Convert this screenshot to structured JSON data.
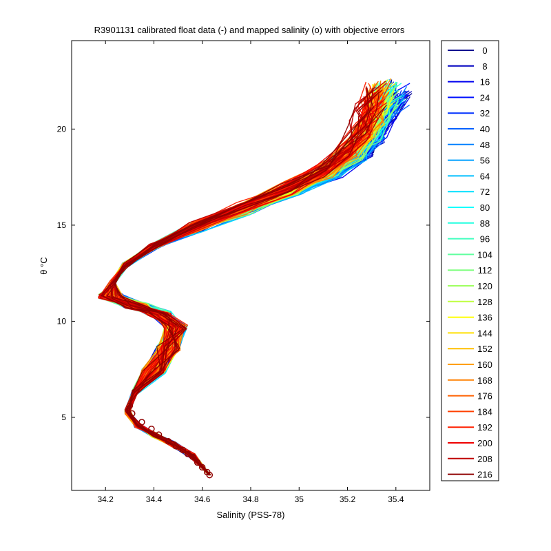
{
  "chart_data": {
    "type": "line",
    "title": "R3901131 calibrated float data (-) and mapped salinity (o) with objective errors",
    "xlabel": "Salinity (PSS-78)",
    "ylabel": "θ °C",
    "xlim": [
      34.06,
      35.54
    ],
    "ylim": [
      1.2,
      24.6
    ],
    "x_ticks": [
      34.2,
      34.4,
      34.6,
      34.8,
      35,
      35.2,
      35.4
    ],
    "x_tick_labels": [
      "34.2",
      "34.4",
      "34.6",
      "34.8",
      "35",
      "35.2",
      "35.4"
    ],
    "y_ticks": [
      5,
      10,
      15,
      20
    ],
    "y_tick_labels": [
      "5",
      "10",
      "15",
      "20"
    ],
    "grid": false,
    "legend_position": "outside-right",
    "colormap": "jet",
    "series_names": [
      "0",
      "8",
      "16",
      "24",
      "32",
      "40",
      "48",
      "56",
      "64",
      "72",
      "80",
      "88",
      "96",
      "104",
      "112",
      "120",
      "128",
      "136",
      "144",
      "152",
      "160",
      "168",
      "176",
      "184",
      "192",
      "200",
      "208",
      "216"
    ],
    "series_colors": [
      "#00008F",
      "#0000BF",
      "#0000EF",
      "#0010FF",
      "#0030FF",
      "#0060FF",
      "#0080FF",
      "#00A0FF",
      "#00BFFF",
      "#00DFFF",
      "#00FFFF",
      "#20FFDF",
      "#40FFBF",
      "#60FF9F",
      "#80FF80",
      "#9FFF60",
      "#BFFF40",
      "#FFFF00",
      "#FFDF00",
      "#FFBF00",
      "#FF9F00",
      "#FF8000",
      "#FF6000",
      "#FF4000",
      "#FF2000",
      "#EF0000",
      "#BF0000",
      "#8F0000"
    ],
    "profile_template": [
      [
        34.63,
        2.0
      ],
      [
        34.56,
        3.0
      ],
      [
        34.48,
        3.6
      ],
      [
        34.4,
        4.1
      ],
      [
        34.33,
        4.6
      ],
      [
        34.29,
        5.3
      ],
      [
        34.32,
        6.3
      ],
      [
        34.4,
        7.4
      ],
      [
        34.46,
        8.6
      ],
      [
        34.49,
        9.7
      ],
      [
        34.42,
        10.4
      ],
      [
        34.33,
        10.8
      ],
      [
        34.22,
        11.3
      ],
      [
        34.23,
        12.0
      ],
      [
        34.28,
        12.9
      ],
      [
        34.4,
        13.9
      ],
      [
        34.58,
        14.9
      ],
      [
        34.78,
        15.9
      ],
      [
        34.98,
        16.9
      ],
      [
        35.14,
        17.9
      ],
      [
        35.24,
        18.9
      ],
      [
        35.3,
        19.9
      ],
      [
        35.34,
        20.9
      ],
      [
        35.38,
        21.9
      ]
    ],
    "mapped_points": [
      [
        34.63,
        2.0
      ],
      [
        34.62,
        2.15
      ],
      [
        34.6,
        2.4
      ],
      [
        34.58,
        2.65
      ],
      [
        34.56,
        2.95
      ],
      [
        34.54,
        3.1
      ],
      [
        34.52,
        3.3
      ],
      [
        34.49,
        3.5
      ],
      [
        34.46,
        3.75
      ],
      [
        34.42,
        4.1
      ],
      [
        34.39,
        4.4
      ],
      [
        34.35,
        4.75
      ],
      [
        34.31,
        5.2
      ],
      [
        34.3,
        5.6
      ]
    ]
  }
}
